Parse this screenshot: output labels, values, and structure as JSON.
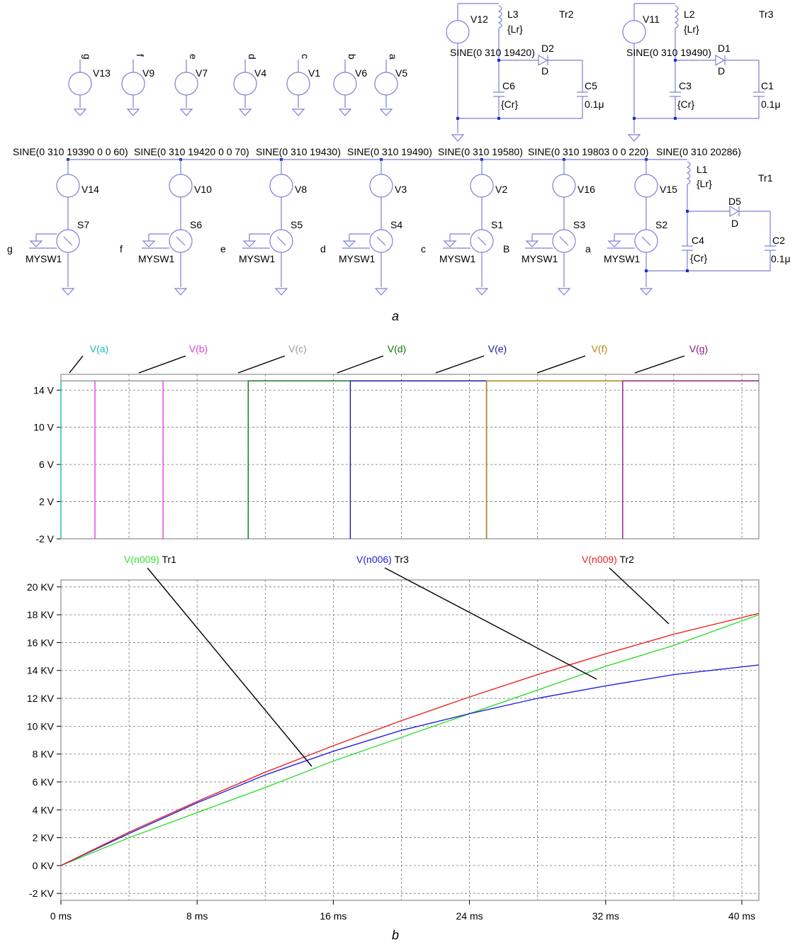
{
  "captions": {
    "a": "a",
    "b": "b"
  },
  "schematic": {
    "top_sources": [
      {
        "name": "V13",
        "net": "g"
      },
      {
        "name": "V9",
        "net": "f"
      },
      {
        "name": "V7",
        "net": "e"
      },
      {
        "name": "V4",
        "net": "d"
      },
      {
        "name": "V1",
        "net": "c"
      },
      {
        "name": "V6",
        "net": "b"
      },
      {
        "name": "V5",
        "net": "a"
      }
    ],
    "tr2": {
      "title": "Tr2",
      "source": "V12",
      "inductor": "L3",
      "inductor_val": "{Lr}",
      "sine": "SINE(0 310 19420)",
      "diode": "D2",
      "diode_model": "D",
      "cap_res": "C6",
      "cap_res_val": "{Cr}",
      "cap_out": "C5",
      "cap_out_val": "0.1μ"
    },
    "tr3": {
      "title": "Tr3",
      "source": "V11",
      "inductor": "L2",
      "inductor_val": "{Lr}",
      "sine": "SINE(0 310 19490)",
      "diode": "D1",
      "diode_model": "D",
      "cap_res": "C3",
      "cap_res_val": "{Cr}",
      "cap_out": "C1",
      "cap_out_val": "0.1μ"
    },
    "tr1": {
      "title": "Tr1",
      "inductor": "L1",
      "inductor_val": "{Lr}",
      "diode": "D5",
      "diode_model": "D",
      "cap_res": "C4",
      "cap_res_val": "{Cr}",
      "cap_out": "C2",
      "cap_out_val": "0.1μ"
    },
    "sine_row": [
      "SINE(0 310 19390 0 0 60)",
      "SINE(0 310 19420 0 0 70)",
      "SINE(0 310 19430)",
      "SINE(0 310 19490)",
      "SINE(0 310 19580)",
      "SINE(0 310 19803 0 0 220)",
      "SINE(0 310 20286)"
    ],
    "bottom_stages": [
      {
        "source": "V14",
        "switch": "S7",
        "ctrl": "g",
        "model": "MYSW1"
      },
      {
        "source": "V10",
        "switch": "S6",
        "ctrl": "f",
        "model": "MYSW1"
      },
      {
        "source": "V8",
        "switch": "S5",
        "ctrl": "e",
        "model": "MYSW1"
      },
      {
        "source": "V3",
        "switch": "S4",
        "ctrl": "d",
        "model": "MYSW1"
      },
      {
        "source": "V2",
        "switch": "S1",
        "ctrl": "c",
        "model": "MYSW1"
      },
      {
        "source": "V16",
        "switch": "S3",
        "ctrl": "B",
        "model": "MYSW1"
      },
      {
        "source": "V15",
        "switch": "S2",
        "ctrl": "a",
        "model": "MYSW1"
      }
    ]
  },
  "chart_data": [
    {
      "type": "line",
      "title": "",
      "ytick_labels": [
        "14 V",
        "10 V",
        "6 V",
        "2 V",
        "-2 V"
      ],
      "ylim": [
        -2,
        15.7
      ],
      "xlim": [
        0,
        41
      ],
      "x_unit": "ms",
      "grid": true,
      "series": [
        {
          "name": "V(a)",
          "color": "#19b9b9",
          "x": [
            0,
            0,
            41
          ],
          "y": [
            -2,
            15,
            15
          ]
        },
        {
          "name": "V(b)",
          "color": "#e040e0",
          "x": [
            2,
            2,
            6,
            6
          ],
          "y": [
            -2,
            15,
            15,
            -2
          ]
        },
        {
          "name": "V(c)",
          "color": "#999999",
          "x": [
            0,
            41
          ],
          "y": [
            15,
            15
          ]
        },
        {
          "name": "V(d)",
          "color": "#0a7a0a",
          "x": [
            11,
            11,
            41
          ],
          "y": [
            -2,
            15,
            15
          ]
        },
        {
          "name": "V(e)",
          "color": "#1515b0",
          "x": [
            17,
            17,
            25,
            25
          ],
          "y": [
            -2,
            15,
            15,
            -2
          ]
        },
        {
          "name": "V(f)",
          "color": "#b8860b",
          "x": [
            25,
            25,
            41
          ],
          "y": [
            -2,
            15,
            15
          ]
        },
        {
          "name": "V(g)",
          "color": "#8b1a8b",
          "x": [
            33,
            33,
            41
          ],
          "y": [
            -2,
            15,
            15
          ]
        }
      ]
    },
    {
      "type": "line",
      "title": "",
      "ytick_labels": [
        "20 KV",
        "18 KV",
        "16 KV",
        "14 KV",
        "12 KV",
        "10 KV",
        "8 KV",
        "6 KV",
        "4 KV",
        "2 KV",
        "0 KV",
        "-2 KV"
      ],
      "xtick_labels": [
        "0 ms",
        "8 ms",
        "16 ms",
        "24 ms",
        "32 ms",
        "40 ms"
      ],
      "ylim": [
        -2.5,
        20.5
      ],
      "xlim": [
        0,
        41
      ],
      "x_unit": "ms",
      "y_unit": "KV",
      "grid": true,
      "series": [
        {
          "name": "V(n009) Tr1",
          "color": "#33dd33",
          "x": [
            0,
            4,
            8,
            12,
            16,
            20,
            24,
            28,
            32,
            36,
            41
          ],
          "y": [
            0,
            2.0,
            3.8,
            5.6,
            7.5,
            9.2,
            10.9,
            12.6,
            14.3,
            15.8,
            18.0
          ]
        },
        {
          "name": "V(n006) Tr3",
          "color": "#2222dd",
          "x": [
            0,
            4,
            8,
            12,
            16,
            20,
            24,
            28,
            32,
            36,
            41
          ],
          "y": [
            0,
            2.3,
            4.5,
            6.5,
            8.2,
            9.7,
            10.9,
            12.0,
            12.9,
            13.7,
            14.4
          ]
        },
        {
          "name": "V(n009) Tr2",
          "color": "#ee2222",
          "x": [
            0,
            4,
            8,
            12,
            16,
            20,
            24,
            28,
            32,
            36,
            41
          ],
          "y": [
            0,
            2.4,
            4.6,
            6.7,
            8.6,
            10.4,
            12.1,
            13.7,
            15.2,
            16.6,
            18.1
          ]
        }
      ]
    }
  ]
}
